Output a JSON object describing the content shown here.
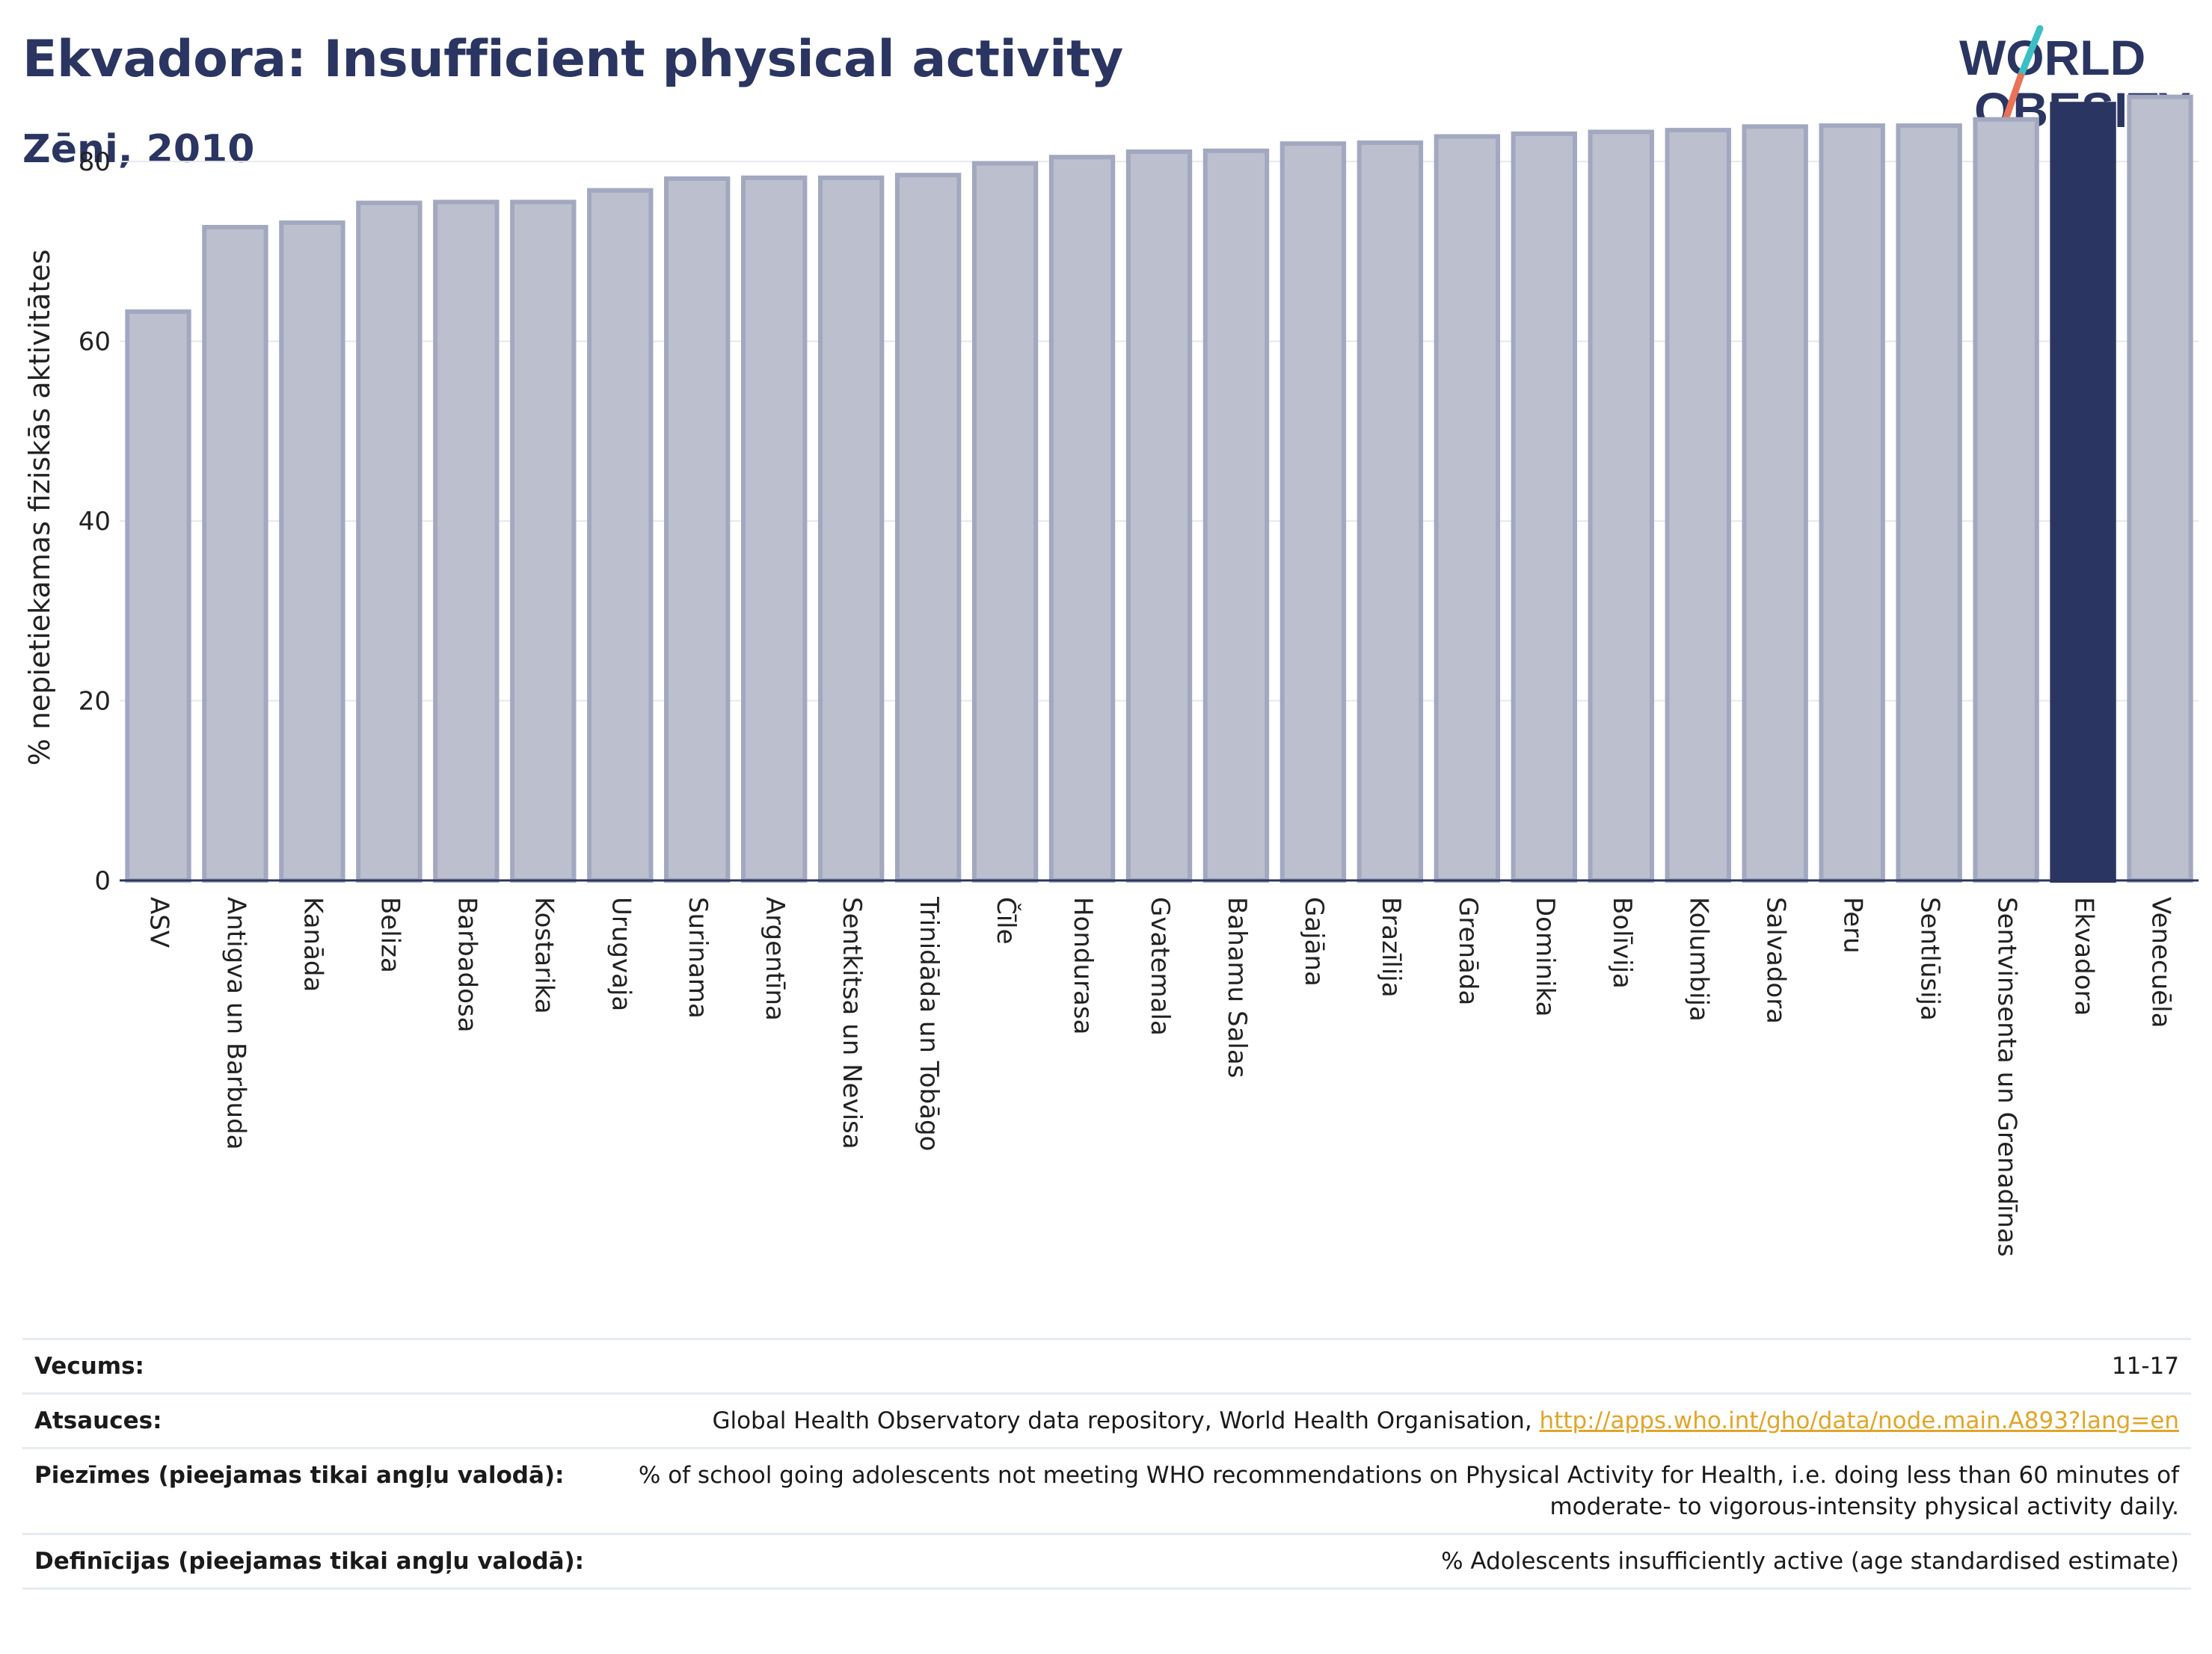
{
  "header": {
    "title": "Ekvadora: Insufficient physical activity",
    "subtitle": "Zēni, 2010"
  },
  "logo": {
    "line1": "WORLD",
    "line2": "OBESITY",
    "accent_colors": [
      "#3bbfc4",
      "#e8735a"
    ],
    "text_color": "#2b3561"
  },
  "chart_data": {
    "type": "bar",
    "title": "Ekvadora: Insufficient physical activity",
    "subtitle": "Zēni, 2010",
    "xlabel": "",
    "ylabel": "% nepietiekamas fiziskās aktivitātes",
    "ylim": [
      0,
      88
    ],
    "yticks": [
      0,
      20,
      40,
      60,
      80
    ],
    "grid": true,
    "highlight_category": "Ekvadora",
    "colors": {
      "bar_fill": "#bcc0ce",
      "bar_stroke": "#a2a8bf",
      "highlight": "#2b3561",
      "grid": "#e6e8ee",
      "axis": "#2b3561"
    },
    "categories": [
      "ASV",
      "Antigva un Barbuda",
      "Kanāda",
      "Beliza",
      "Barbadosa",
      "Kostarika",
      "Urugvaja",
      "Surinama",
      "Argentīna",
      "Sentkitsa un Nevisa",
      "Trinidāda un Tobāgo",
      "Čīle",
      "Hondurasa",
      "Gvatemala",
      "Bahamu Salas",
      "Gajāna",
      "Brazīlija",
      "Grenāda",
      "Dominika",
      "Bolīvija",
      "Kolumbija",
      "Salvadora",
      "Peru",
      "Sentlūsija",
      "Sentvinsenta un Grenadīnas",
      "Ekvadora",
      "Venecuēla"
    ],
    "values": [
      63.3,
      72.7,
      73.2,
      75.4,
      75.5,
      75.5,
      76.8,
      78.1,
      78.2,
      78.2,
      78.5,
      79.8,
      80.5,
      81.1,
      81.2,
      82.0,
      82.1,
      82.8,
      83.1,
      83.3,
      83.5,
      83.9,
      84.0,
      84.0,
      84.7,
      86.4,
      87.2
    ]
  },
  "info": {
    "age_key": "Vecums:",
    "age_value": "11-17",
    "sources_key": "Atsauces:",
    "sources_text": "Global Health Observatory data repository, World Health Organisation, ",
    "sources_link": "http://apps.who.int/gho/data/node.main.A893?lang=en",
    "notes_key": "Piezīmes (pieejamas tikai angļu valodā):",
    "notes_value": "% of school going adolescents not meeting WHO recommendations on Physical Activity for Health, i.e. doing less than 60 minutes of moderate- to vigorous-intensity physical activity daily.",
    "definitions_key": "Definīcijas (pieejamas tikai angļu valodā):",
    "definitions_value": "% Adolescents insufficiently active (age standardised estimate)"
  }
}
